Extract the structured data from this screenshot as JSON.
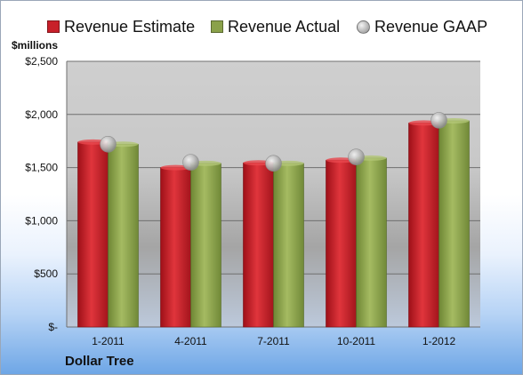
{
  "legend": {
    "estimate": "Revenue Estimate",
    "actual": "Revenue Actual",
    "gaap": "Revenue GAAP"
  },
  "unit_label": "$millions",
  "company": "Dollar Tree",
  "colors": {
    "estimate": "#c8202a",
    "actual": "#8aa14a",
    "gaap": "#b8b8b8"
  },
  "chart_data": {
    "type": "bar",
    "title": "",
    "xlabel": "Dollar Tree",
    "ylabel": "$millions",
    "categories": [
      "1-2011",
      "4-2011",
      "7-2011",
      "10-2011",
      "1-2012"
    ],
    "ylim": [
      0,
      2500
    ],
    "yticks": [
      0,
      500,
      1000,
      1500,
      2000,
      2500
    ],
    "ytick_labels": [
      "$-",
      "$500",
      "$1,000",
      "$1,500",
      "$2,000",
      "$2,500"
    ],
    "grid": true,
    "legend_position": "top",
    "series": [
      {
        "name": "Revenue Estimate",
        "type": "bar",
        "values": [
          1740,
          1500,
          1545,
          1570,
          1920
        ]
      },
      {
        "name": "Revenue Actual",
        "type": "bar",
        "values": [
          1720,
          1540,
          1540,
          1590,
          1940
        ]
      },
      {
        "name": "Revenue GAAP",
        "type": "scatter",
        "values": [
          1720,
          1550,
          1540,
          1600,
          1945
        ]
      }
    ]
  }
}
